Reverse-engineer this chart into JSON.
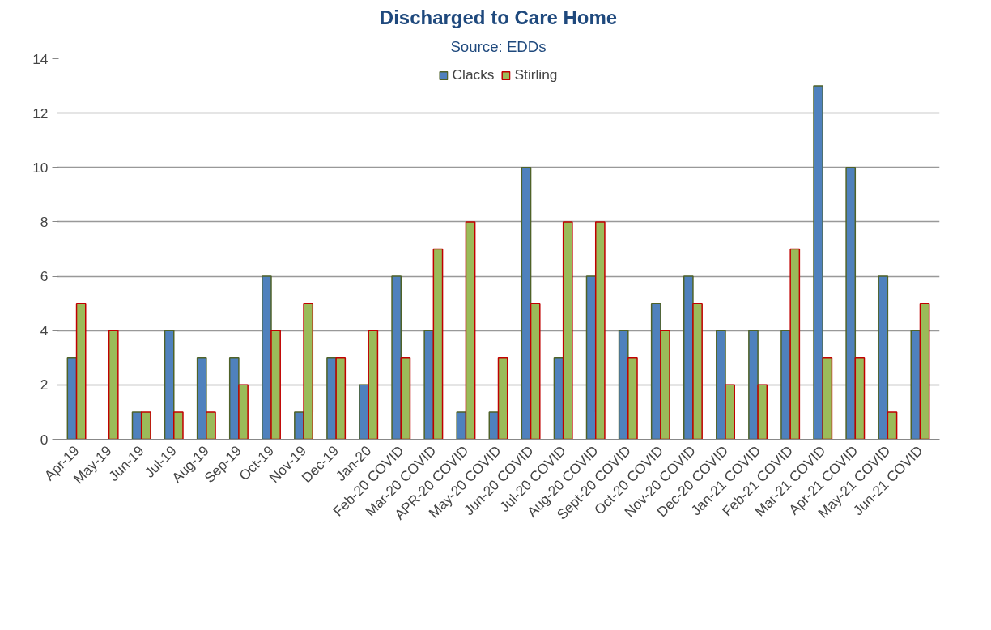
{
  "chart_data": {
    "type": "bar",
    "title": "Discharged to Care Home",
    "subtitle": "Source: EDDs",
    "categories": [
      "Apr-19",
      "May-19",
      "Jun-19",
      "Jul-19",
      "Aug-19",
      "Sep-19",
      "Oct-19",
      "Nov-19",
      "Dec-19",
      "Jan-20",
      "Feb-20 COVID",
      "Mar-20 COVID",
      "APR-20 COVID",
      "May-20 COVID",
      "Jun-20 COVID",
      "Jul-20 COVID",
      "Aug-20 COVID",
      "Sept-20 COVID",
      "Oct-20 COVID",
      "Nov-20 COVID",
      "Dec-20 COVID",
      "Jan-21 COVID",
      "Feb-21 COVID",
      "Mar-21 COVID",
      "Apr-21 COVID",
      "May-21 COVID",
      "Jun-21 COVID"
    ],
    "series": [
      {
        "name": "Clacks",
        "color": "#4f81bd",
        "values": [
          3,
          0,
          1,
          4,
          3,
          3,
          6,
          1,
          3,
          2,
          6,
          4,
          1,
          1,
          10,
          3,
          6,
          4,
          5,
          6,
          4,
          4,
          4,
          13,
          10,
          6,
          4
        ]
      },
      {
        "name": "Stirling",
        "color": "#9bbb59",
        "values": [
          5,
          4,
          1,
          1,
          1,
          2,
          4,
          5,
          3,
          4,
          3,
          7,
          8,
          3,
          5,
          8,
          8,
          3,
          4,
          5,
          2,
          2,
          7,
          3,
          3,
          1,
          5
        ]
      }
    ],
    "ylim": [
      0,
      14
    ],
    "yticks": [
      0,
      2,
      4,
      6,
      8,
      10,
      12,
      14
    ],
    "grid": "y",
    "legend": "top"
  }
}
